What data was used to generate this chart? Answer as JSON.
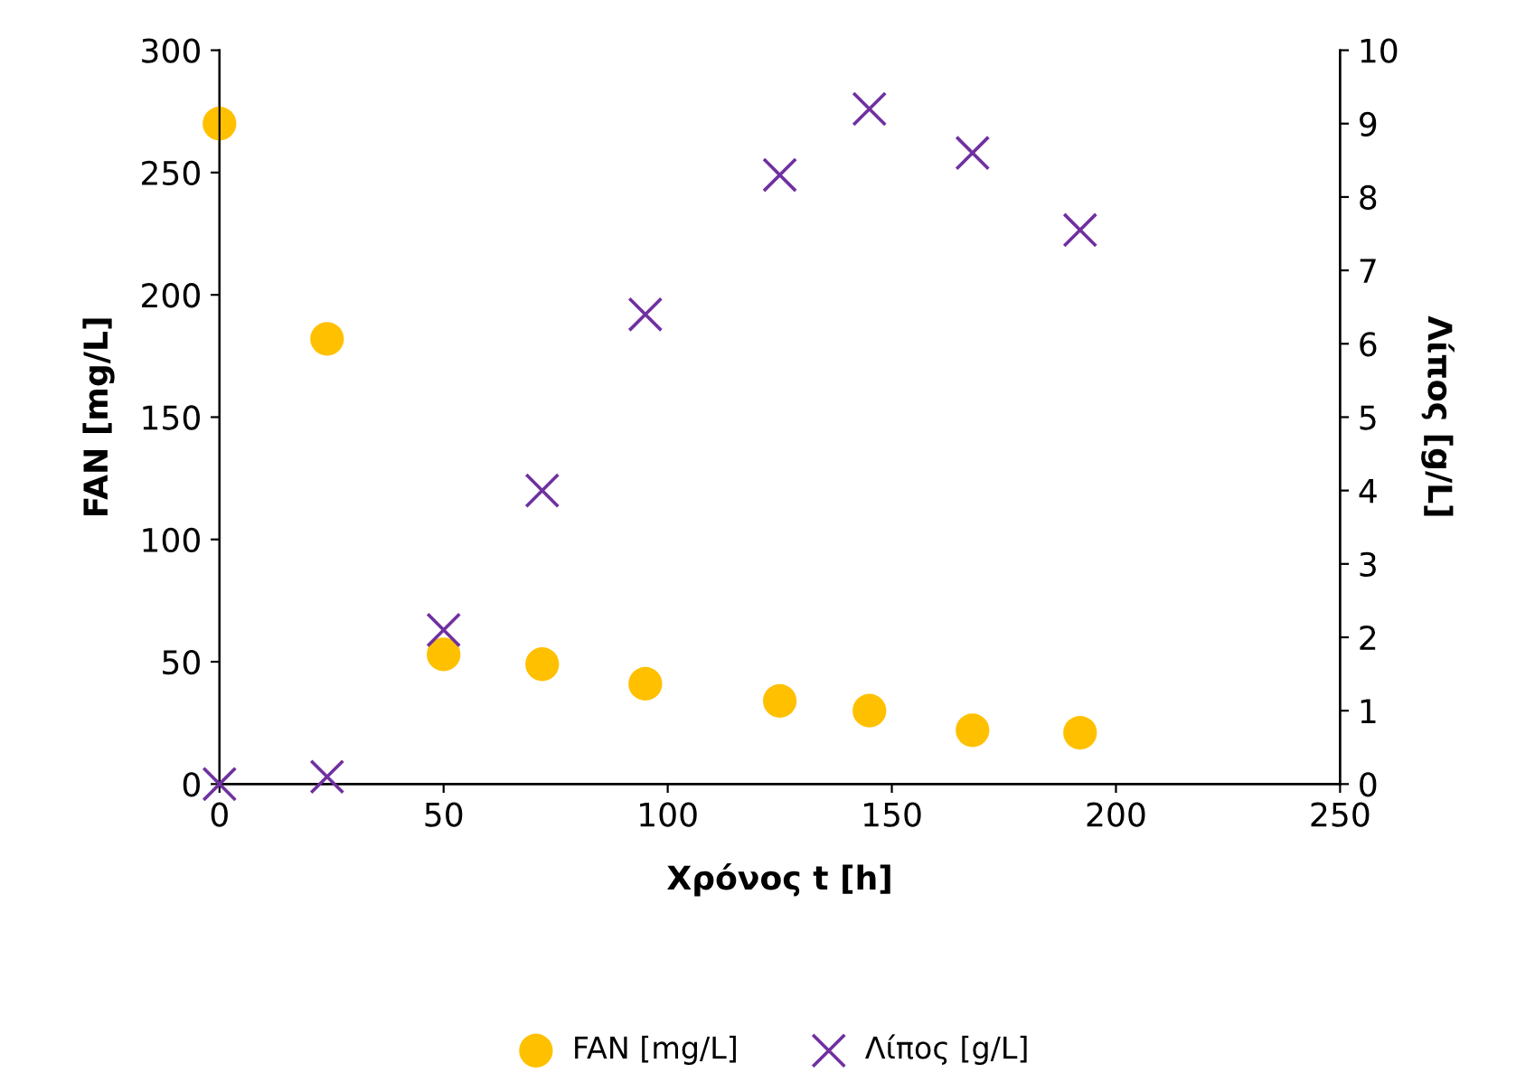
{
  "chart_data": {
    "type": "scatter",
    "xlabel": "Χρόνος t [h]",
    "ylabel": "FAN [mg/L]",
    "y2label": "Λίπος [g/L]",
    "x": [
      0,
      24,
      50,
      72,
      95,
      125,
      145,
      168,
      192
    ],
    "series": [
      {
        "name": "FAN [mg/L]",
        "color": "#ffc000",
        "marker": "circle",
        "values": [
          270,
          182,
          53,
          49,
          41,
          34,
          30,
          22,
          21
        ]
      },
      {
        "name": "Λίπος [g/L]",
        "color": "#7030a0",
        "marker": "cross",
        "axis": "y2",
        "values": [
          0,
          0.1,
          2.1,
          4.0,
          6.4,
          8.3,
          9.2,
          8.6,
          7.55
        ]
      }
    ],
    "xlim": [
      0,
      250
    ],
    "xticks": [
      0,
      50,
      100,
      150,
      200,
      250
    ],
    "ylim": [
      0,
      300
    ],
    "yticks": [
      0,
      50,
      100,
      150,
      200,
      250,
      300
    ],
    "y2lim": [
      0,
      10
    ],
    "y2ticks": [
      0,
      1,
      2,
      3,
      4,
      5,
      6,
      7,
      8,
      9,
      10
    ],
    "grid": false,
    "legend": "bottom"
  }
}
